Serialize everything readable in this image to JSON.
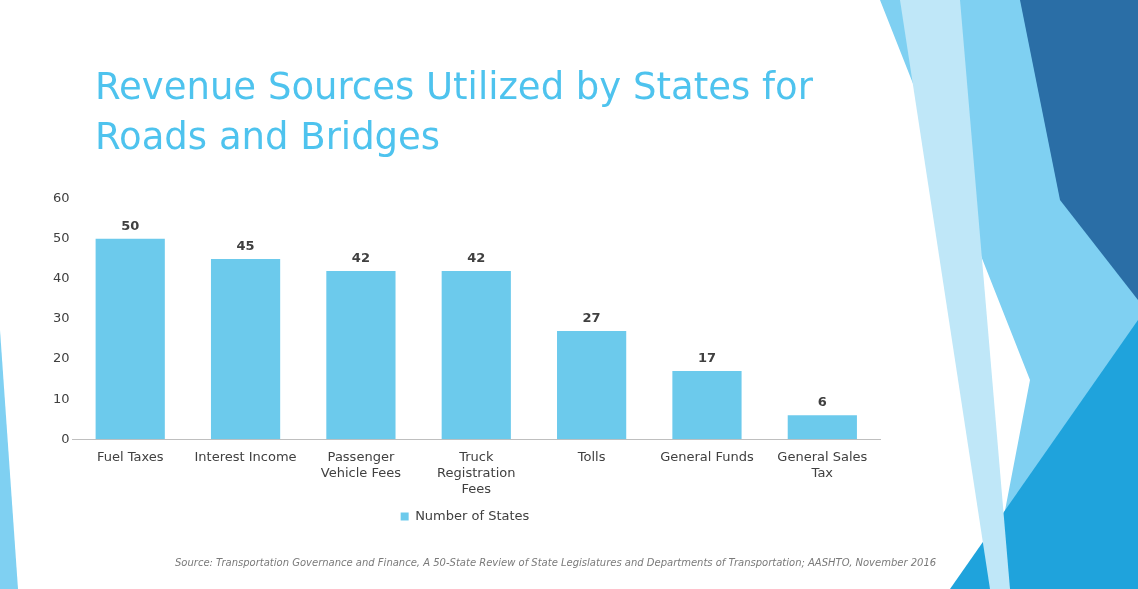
{
  "chart_data": {
    "type": "bar",
    "title": "Revenue Sources Utilized by States for Roads and Bridges",
    "categories": [
      "Fuel Taxes",
      "Interest Income",
      "Passenger Vehicle Fees",
      "Truck Registration Fees",
      "Tolls",
      "General Funds",
      "General Sales Tax"
    ],
    "series": [
      {
        "name": "Number of States",
        "color": "#6ccaec",
        "values": [
          50,
          45,
          42,
          42,
          27,
          17,
          6
        ]
      }
    ],
    "ylim": [
      0,
      60
    ],
    "yticks": [
      0,
      10,
      20,
      30,
      40,
      50,
      60
    ],
    "grid": false,
    "legend": "bottom",
    "data_labels": true,
    "annotations": [
      "Source: Transportation Governance and Finance, A 50-State Review of State Legislatures and Departments of Transportation; AASHTO, November 2016"
    ]
  }
}
